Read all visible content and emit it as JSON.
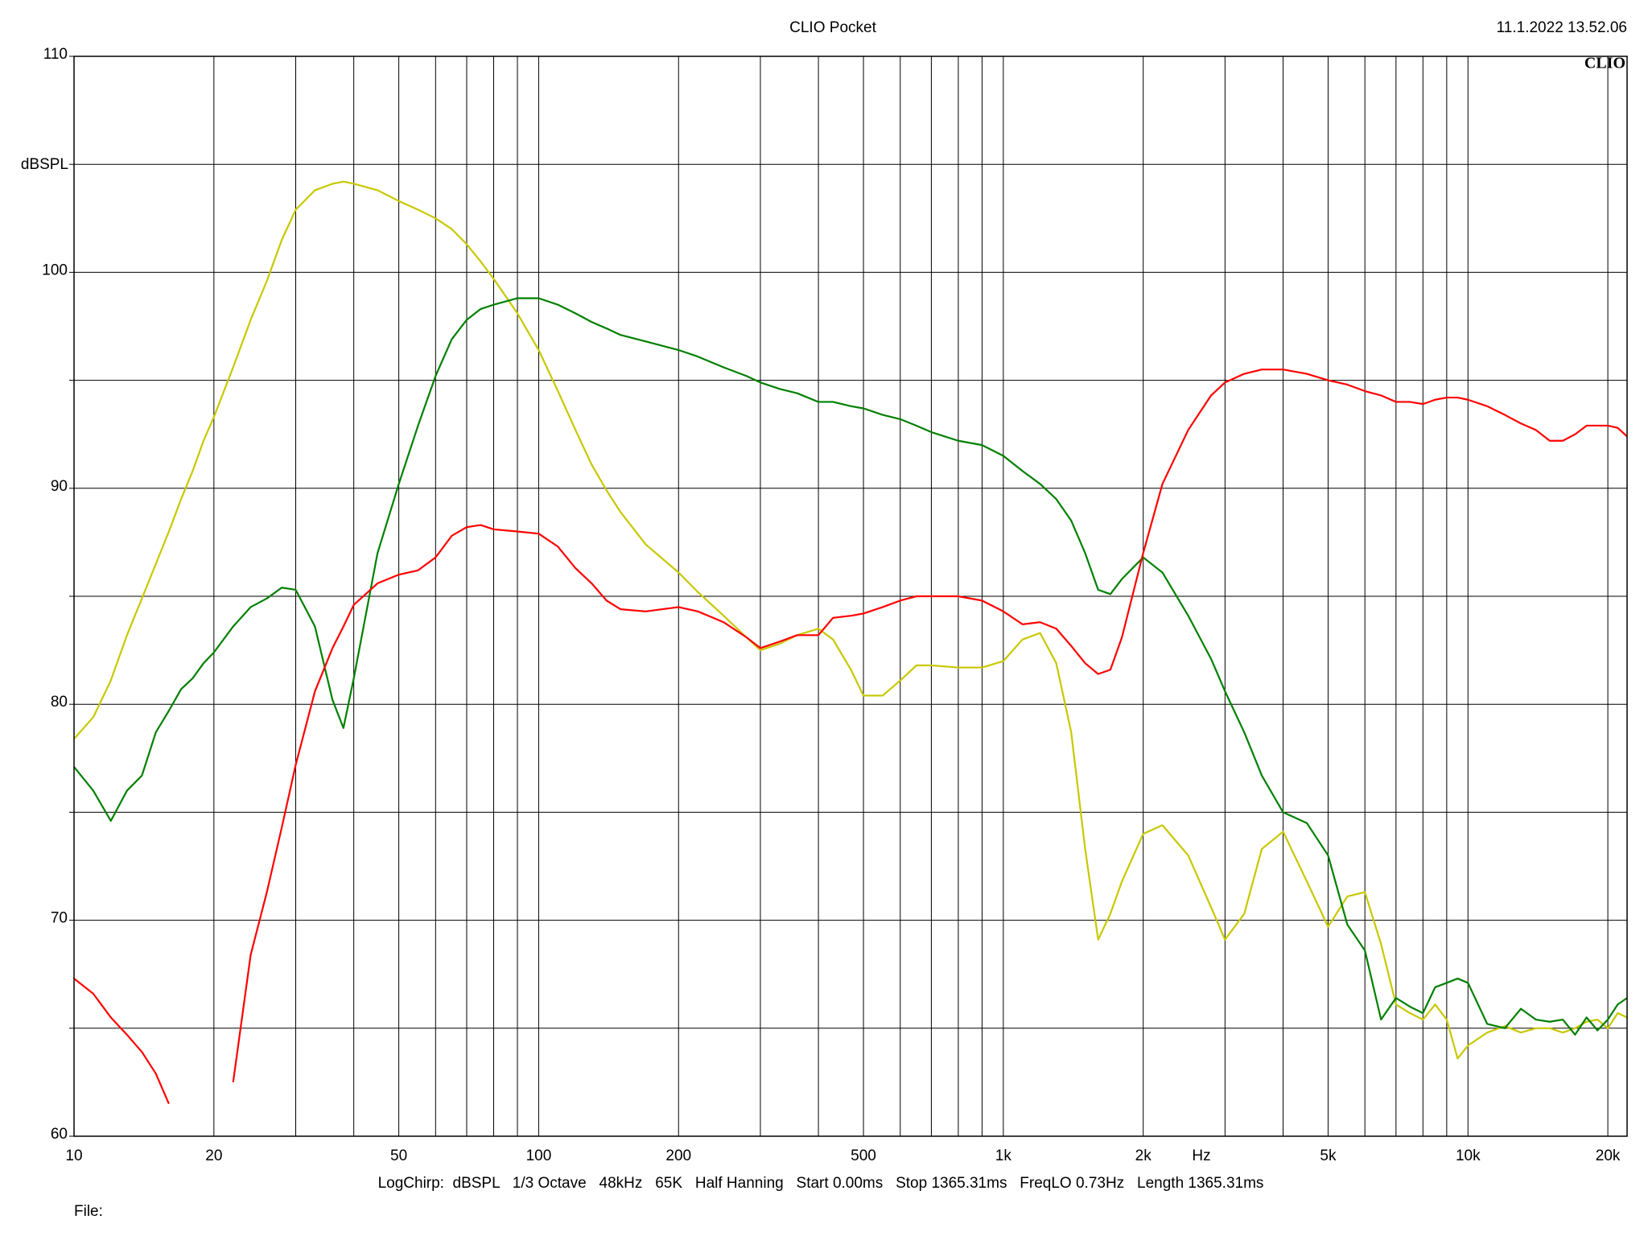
{
  "chart_data": {
    "type": "line",
    "title": "CLIO Pocket",
    "date": "11.1.2022 13.52.06",
    "logo": "CLIO",
    "ylabel": "dBSPL",
    "xlabel": "Hz",
    "footer": "LogChirp:  dBSPL   1/3 Octave   48kHz   65K   Half Hanning   Start 0.00ms   Stop 1365.31ms   FreqLO 0.73Hz   Length 1365.31ms",
    "file_label": "File:",
    "xscale": "log",
    "grid": true,
    "xlim": [
      10,
      22000
    ],
    "ylim": [
      60,
      110
    ],
    "xticks": [
      10,
      20,
      50,
      100,
      200,
      500,
      {
        "value": 1000,
        "label": "1k"
      },
      {
        "value": 2000,
        "label": "2k"
      },
      {
        "value": 5000,
        "label": "5k"
      },
      {
        "value": 10000,
        "label": "10k"
      },
      {
        "value": 20000,
        "label": "20k"
      }
    ],
    "x_minor_ticks": [
      30,
      40,
      60,
      70,
      80,
      90,
      300,
      400,
      600,
      700,
      800,
      900,
      3000,
      4000,
      6000,
      7000,
      8000,
      9000
    ],
    "yticks": [
      60,
      70,
      80,
      90,
      100,
      110
    ],
    "y_minor_ticks": [
      65,
      75,
      85,
      95,
      105
    ],
    "x": [
      10,
      11,
      12,
      13,
      14,
      15,
      16,
      17,
      18,
      19,
      20,
      22,
      24,
      26,
      28,
      30,
      33,
      36,
      38,
      40,
      45,
      50,
      55,
      60,
      65,
      70,
      75,
      80,
      90,
      100,
      110,
      120,
      130,
      140,
      150,
      170,
      200,
      220,
      250,
      280,
      300,
      330,
      360,
      400,
      430,
      470,
      500,
      550,
      600,
      650,
      700,
      800,
      900,
      1000,
      1100,
      1200,
      1300,
      1400,
      1500,
      1600,
      1700,
      1800,
      2000,
      2200,
      2500,
      2800,
      3000,
      3300,
      3600,
      4000,
      4500,
      5000,
      5500,
      6000,
      6500,
      7000,
      7500,
      8000,
      8500,
      9000,
      9500,
      10000,
      11000,
      12000,
      13000,
      14000,
      15000,
      16000,
      17000,
      18000,
      19000,
      20000,
      21000,
      22000
    ],
    "series": [
      {
        "color": "#c8c800",
        "values": [
          78.4,
          79.4,
          81.1,
          83.2,
          84.9,
          86.5,
          88.0,
          89.5,
          90.8,
          92.2,
          93.3,
          95.6,
          97.8,
          99.6,
          101.5,
          102.9,
          103.8,
          104.1,
          104.2,
          104.1,
          103.8,
          103.3,
          102.9,
          102.5,
          102.0,
          101.3,
          100.5,
          99.7,
          98.1,
          96.4,
          94.5,
          92.7,
          91.1,
          89.9,
          88.9,
          87.4,
          86.1,
          85.2,
          84.1,
          83.1,
          82.5,
          82.8,
          83.2,
          83.5,
          83.0,
          81.6,
          80.4,
          80.4,
          81.1,
          81.8,
          81.8,
          81.7,
          81.7,
          82.0,
          83.0,
          83.3,
          81.9,
          78.7,
          73.3,
          69.1,
          70.3,
          71.8,
          74.0,
          74.4,
          73.0,
          70.6,
          69.1,
          70.3,
          73.3,
          74.1,
          71.8,
          69.7,
          71.1,
          71.3,
          68.9,
          66.1,
          65.7,
          65.4,
          66.1,
          65.4,
          63.6,
          64.2,
          64.8,
          65.1,
          64.8,
          65.0,
          65.0,
          64.8,
          65.0,
          65.3,
          65.4,
          65.0,
          65.7,
          65.5
        ]
      },
      {
        "color": "#008000",
        "values": [
          77.1,
          76.0,
          74.6,
          76.0,
          76.7,
          78.7,
          79.7,
          80.7,
          81.2,
          81.9,
          82.4,
          83.6,
          84.5,
          84.9,
          85.4,
          85.3,
          83.6,
          80.2,
          78.9,
          81.2,
          87.0,
          90.2,
          92.9,
          95.2,
          96.9,
          97.8,
          98.3,
          98.5,
          98.8,
          98.8,
          98.5,
          98.1,
          97.7,
          97.4,
          97.1,
          96.8,
          96.4,
          96.1,
          95.6,
          95.2,
          94.9,
          94.6,
          94.4,
          94.0,
          94.0,
          93.8,
          93.7,
          93.4,
          93.2,
          92.9,
          92.6,
          92.2,
          92.0,
          91.5,
          90.8,
          90.2,
          89.5,
          88.5,
          87.0,
          85.3,
          85.1,
          85.8,
          86.8,
          86.1,
          84.1,
          82.1,
          80.6,
          78.7,
          76.7,
          75.0,
          74.5,
          73.0,
          69.8,
          68.6,
          65.4,
          66.4,
          66.0,
          65.7,
          66.9,
          67.1,
          67.3,
          67.1,
          65.2,
          65.0,
          65.9,
          65.4,
          65.3,
          65.4,
          64.7,
          65.5,
          64.9,
          65.4,
          66.1,
          66.4
        ]
      },
      {
        "color": "#ff0000",
        "values": [
          67.3,
          66.6,
          65.5,
          64.7,
          63.9,
          62.9,
          61.5,
          null,
          null,
          null,
          null,
          62.5,
          68.4,
          71.3,
          74.3,
          77.2,
          80.6,
          82.6,
          83.6,
          84.6,
          85.6,
          86.0,
          86.2,
          86.8,
          87.8,
          88.2,
          88.3,
          88.1,
          88.0,
          87.9,
          87.3,
          86.3,
          85.6,
          84.8,
          84.4,
          84.3,
          84.5,
          84.3,
          83.8,
          83.1,
          82.6,
          82.9,
          83.2,
          83.2,
          84.0,
          84.1,
          84.2,
          84.5,
          84.8,
          85.0,
          85.0,
          85.0,
          84.8,
          84.3,
          83.7,
          83.8,
          83.5,
          82.7,
          81.9,
          81.4,
          81.6,
          83.1,
          87.0,
          90.2,
          92.7,
          94.3,
          94.9,
          95.3,
          95.5,
          95.5,
          95.3,
          95.0,
          94.8,
          94.5,
          94.3,
          94.0,
          94.0,
          93.9,
          94.1,
          94.2,
          94.2,
          94.1,
          93.8,
          93.4,
          93.0,
          92.7,
          92.2,
          92.2,
          92.5,
          92.9,
          92.9,
          92.9,
          92.8,
          92.4
        ]
      }
    ]
  }
}
